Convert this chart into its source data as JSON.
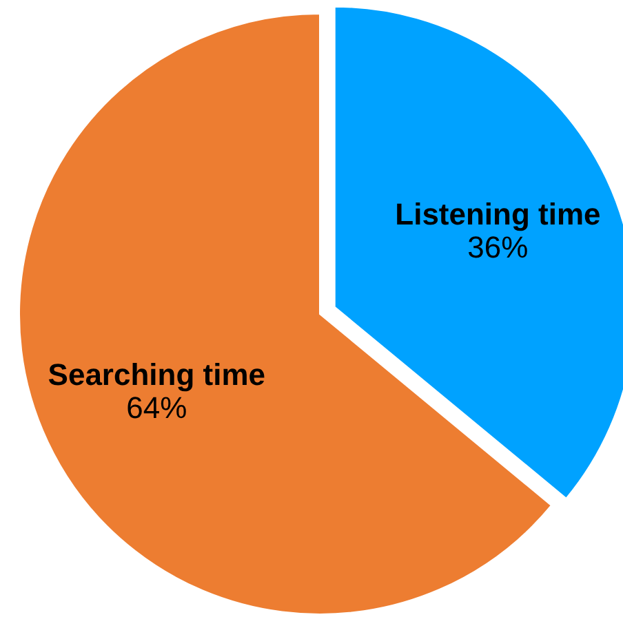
{
  "chart_data": {
    "type": "pie",
    "categories": [
      "Listening time",
      "Searching time"
    ],
    "values": [
      36,
      64
    ],
    "colors": [
      "#00a2ff",
      "#ed7d31"
    ],
    "value_labels": [
      "36%",
      "64%"
    ],
    "legend": false
  }
}
